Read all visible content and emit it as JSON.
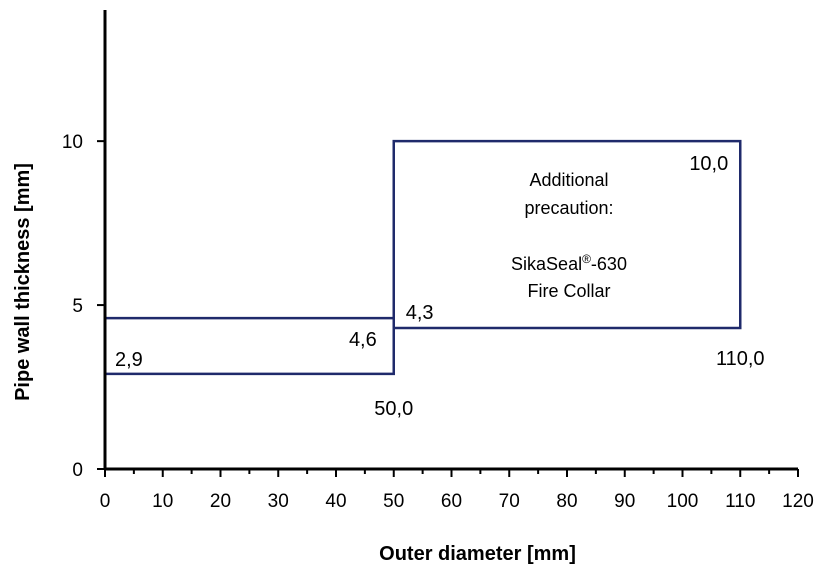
{
  "chart_data": {
    "type": "line",
    "title": "",
    "xlabel": "Outer diameter [mm]",
    "ylabel": "Pipe wall thickness [mm]",
    "xlim": [
      0,
      120
    ],
    "ylim": [
      0,
      14
    ],
    "x_ticks": [
      0,
      10,
      20,
      30,
      40,
      50,
      60,
      70,
      80,
      90,
      100,
      110,
      120
    ],
    "x_tick_labels": [
      "0",
      "10",
      "20",
      "30",
      "40",
      "50",
      "60",
      "70",
      "80",
      "90",
      "100",
      "110",
      "120"
    ],
    "y_ticks": [
      0,
      5,
      10
    ],
    "y_tick_labels": [
      "0",
      "5",
      "10"
    ],
    "grid": false,
    "legend": "none",
    "line_color": "#1f2a6b",
    "series": [
      {
        "x": [
          0,
          50,
          50,
          0
        ],
        "y": [
          2.9,
          2.9,
          4.6,
          4.6
        ]
      },
      {
        "x": [
          50,
          50,
          110,
          110,
          50
        ],
        "y": [
          4.6,
          10.0,
          10.0,
          4.3,
          4.3
        ]
      }
    ],
    "data_labels": [
      {
        "text": "2,9",
        "x": 0,
        "y": 2.9
      },
      {
        "text": "4,6",
        "x": 50,
        "y": 4.6
      },
      {
        "text": "50,0",
        "x": 50,
        "y": 2.9
      },
      {
        "text": "4,3",
        "x": 50,
        "y": 4.3
      },
      {
        "text": "10,0",
        "x": 110,
        "y": 10.0
      },
      {
        "text": "110,0",
        "x": 110,
        "y": 4.3
      }
    ],
    "annotation": {
      "lines": [
        "Additional",
        "precaution:",
        "",
        "SikaSeal",
        "-630",
        "Fire Collar"
      ],
      "registered_mark": "®"
    }
  }
}
